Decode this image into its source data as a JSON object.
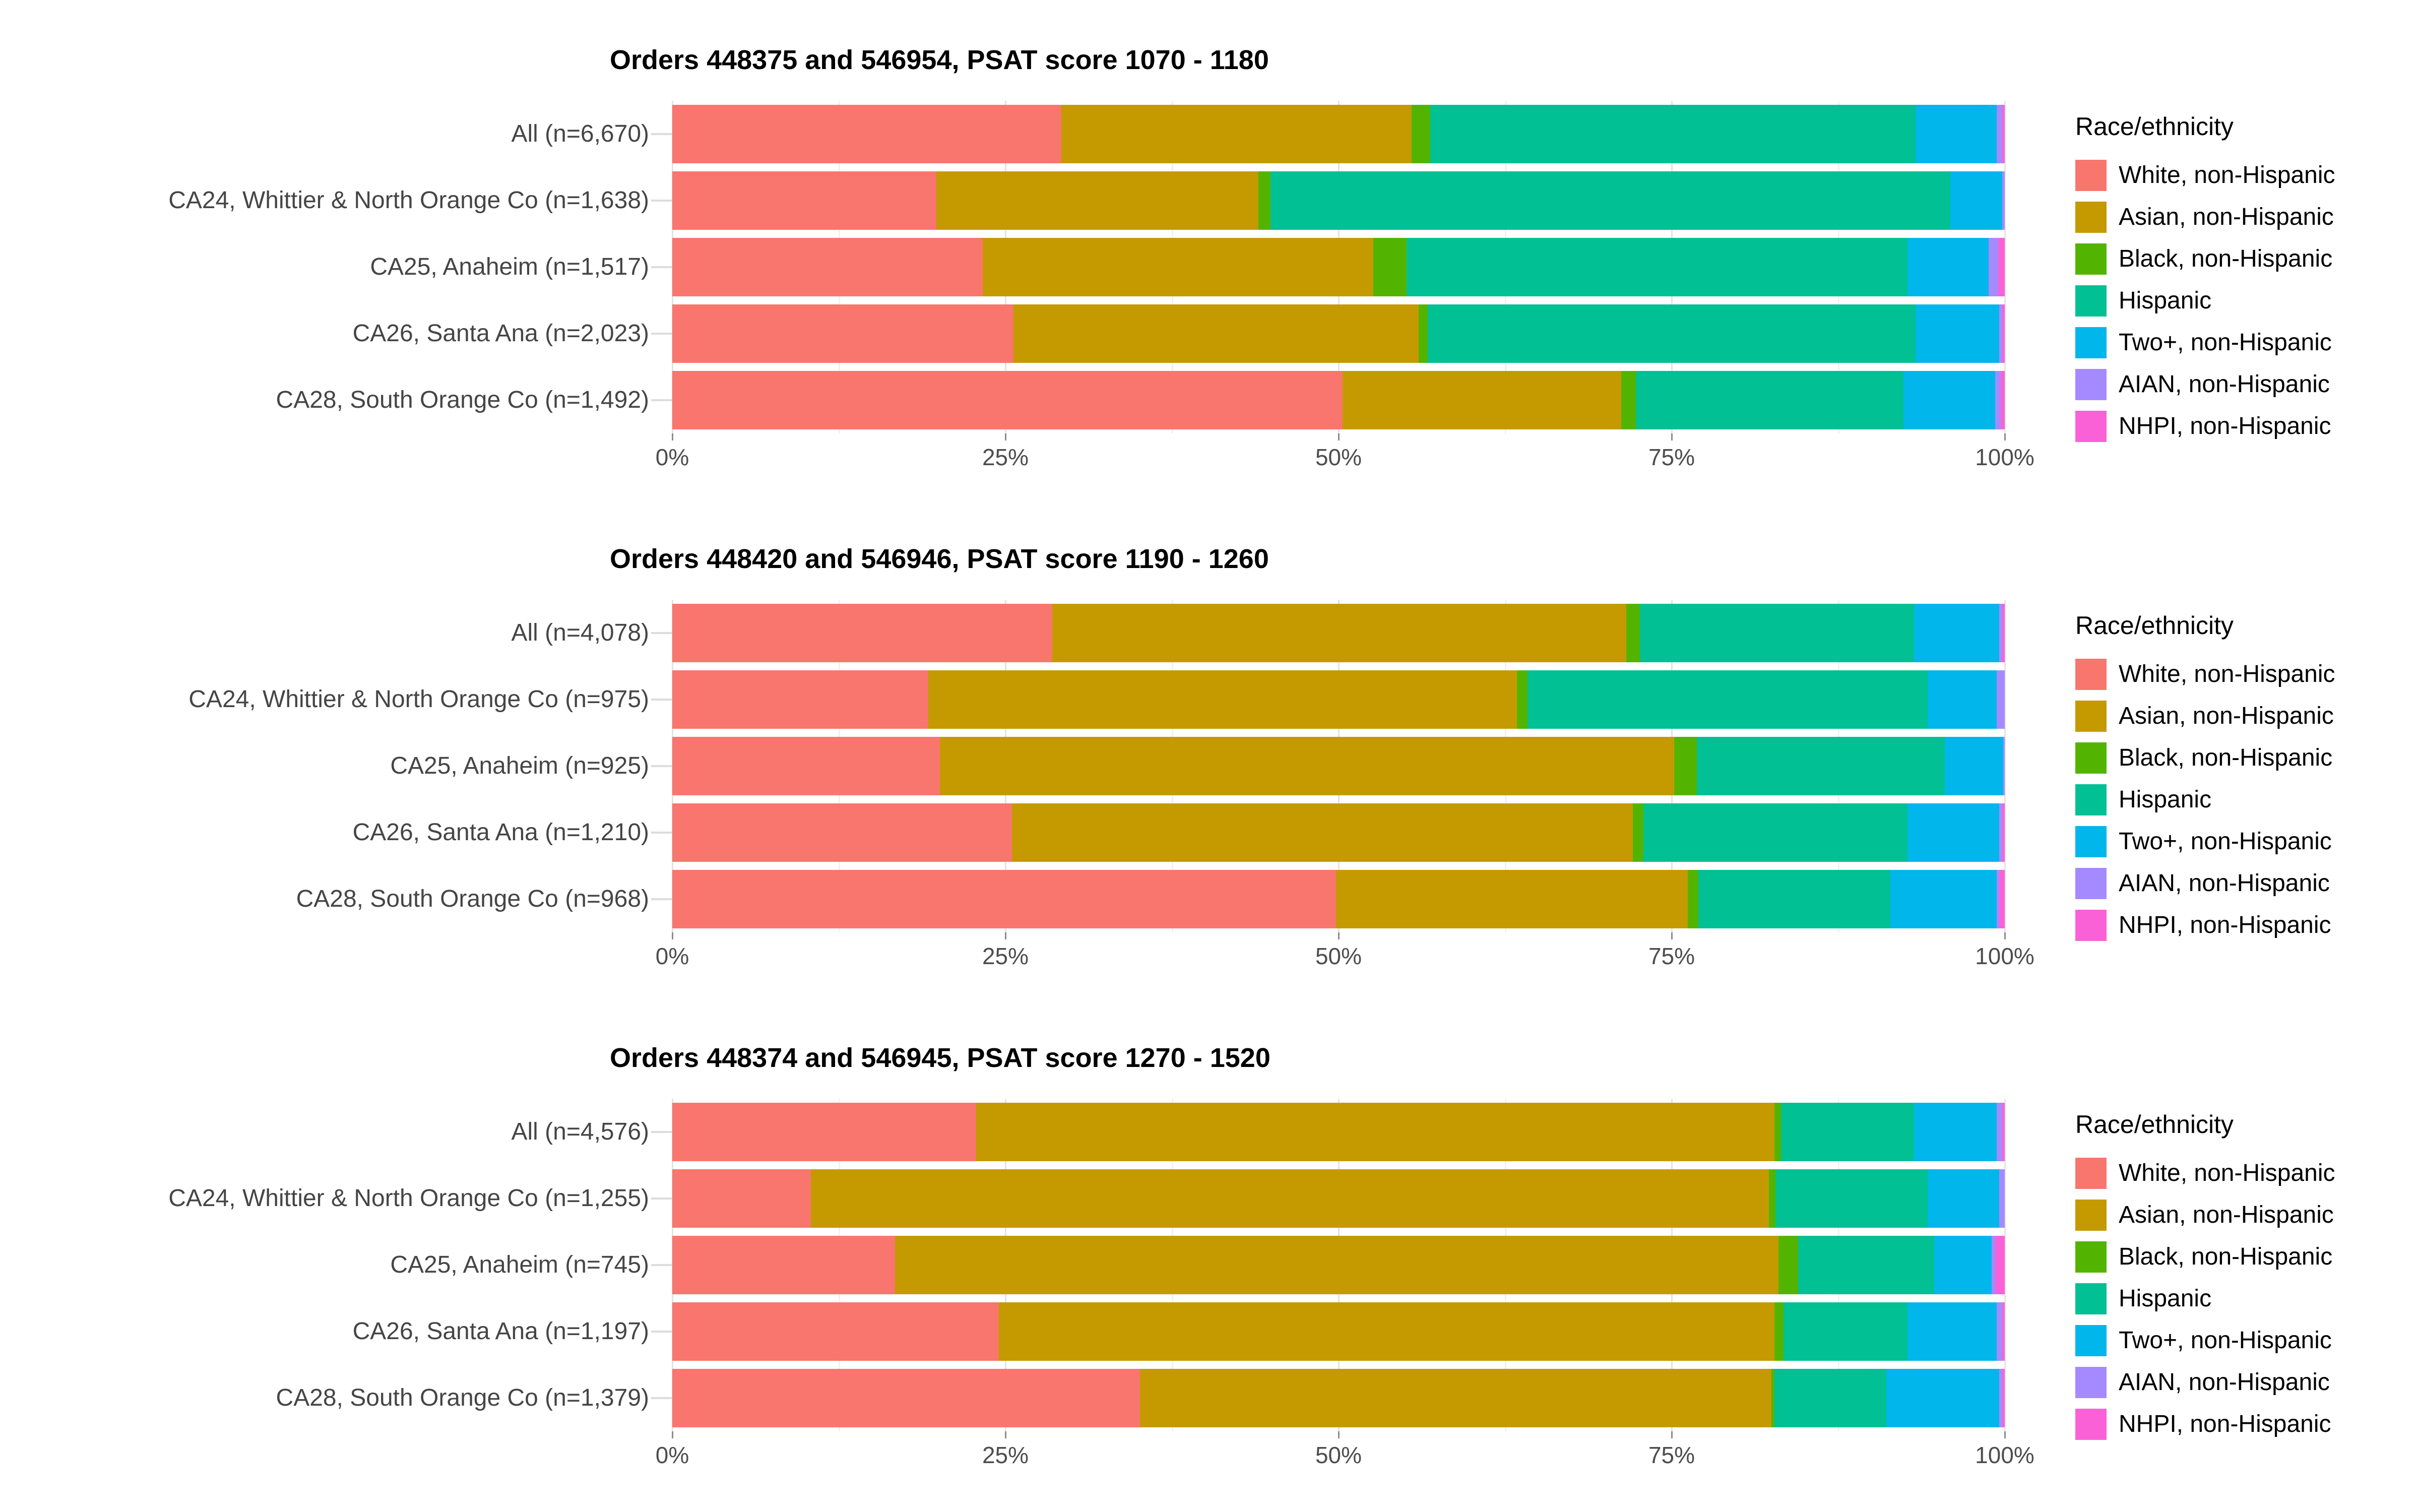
{
  "legend_title": "Race/ethnicity",
  "x_axis": {
    "tick_labels": [
      "0%",
      "25%",
      "50%",
      "75%",
      "100%"
    ],
    "tick_values": [
      0,
      25,
      50,
      75,
      100
    ]
  },
  "palette": {
    "white_nh": "#F8766D",
    "asian_nh": "#C49A00",
    "black_nh": "#53B400",
    "hispanic": "#00C094",
    "two_plus_nh": "#00B6EB",
    "aian_nh": "#A58AFF",
    "nhpi_nh": "#FB61D7"
  },
  "chart_data": [
    {
      "type": "bar",
      "stacked": true,
      "orientation": "horizontal",
      "title": "Orders 448375 and 546954, PSAT score 1070 - 1180",
      "xlabel": "",
      "ylabel": "",
      "xlim": [
        0,
        100
      ],
      "units": "percent",
      "grid": "major+minor vertical, light gray on white",
      "x_ticks": [
        "0%",
        "25%",
        "50%",
        "75%",
        "100%"
      ],
      "x_tick_values": [
        0,
        25,
        50,
        75,
        100
      ],
      "legend_title": "Race/ethnicity",
      "legend_position": "right",
      "categories": [
        "All (n=6,670)",
        "CA24, Whittier & North Orange Co (n=1,638)",
        "CA25, Anaheim (n=1,517)",
        "CA26, Santa Ana (n=2,023)",
        "CA28, South Orange Co (n=1,492)"
      ],
      "series": [
        {
          "name": "White, non-Hispanic",
          "color": "#F8766D",
          "values": [
            29.2,
            19.8,
            23.3,
            25.6,
            50.3
          ]
        },
        {
          "name": "Asian, non-Hispanic",
          "color": "#C49A00",
          "values": [
            26.3,
            24.2,
            29.3,
            30.4,
            20.9
          ]
        },
        {
          "name": "Black, non-Hispanic",
          "color": "#53B400",
          "values": [
            1.4,
            0.9,
            2.5,
            0.7,
            1.1
          ]
        },
        {
          "name": "Hispanic",
          "color": "#00C094",
          "values": [
            36.4,
            51.0,
            37.6,
            36.6,
            20.1
          ]
        },
        {
          "name": "Two+, non-Hispanic",
          "color": "#00B6EB",
          "values": [
            6.1,
            3.9,
            6.1,
            6.3,
            6.9
          ]
        },
        {
          "name": "AIAN, non-Hispanic",
          "color": "#A58AFF",
          "values": [
            0.4,
            0.2,
            0.7,
            0.2,
            0.4
          ]
        },
        {
          "name": "NHPI, non-Hispanic",
          "color": "#FB61D7",
          "values": [
            0.2,
            0.0,
            0.5,
            0.2,
            0.3
          ]
        }
      ]
    },
    {
      "type": "bar",
      "stacked": true,
      "orientation": "horizontal",
      "title": "Orders 448420 and 546946, PSAT score 1190 - 1260",
      "xlabel": "",
      "ylabel": "",
      "xlim": [
        0,
        100
      ],
      "units": "percent",
      "grid": "major+minor vertical, light gray on white",
      "x_ticks": [
        "0%",
        "25%",
        "50%",
        "75%",
        "100%"
      ],
      "x_tick_values": [
        0,
        25,
        50,
        75,
        100
      ],
      "legend_title": "Race/ethnicity",
      "legend_position": "right",
      "categories": [
        "All (n=4,078)",
        "CA24, Whittier & North Orange Co (n=975)",
        "CA25, Anaheim (n=925)",
        "CA26, Santa Ana (n=1,210)",
        "CA28, South Orange Co (n=968)"
      ],
      "series": [
        {
          "name": "White, non-Hispanic",
          "color": "#F8766D",
          "values": [
            28.5,
            19.2,
            20.1,
            25.5,
            49.8
          ]
        },
        {
          "name": "Asian, non-Hispanic",
          "color": "#C49A00",
          "values": [
            43.1,
            44.2,
            55.1,
            46.6,
            26.4
          ]
        },
        {
          "name": "Black, non-Hispanic",
          "color": "#53B400",
          "values": [
            1.0,
            0.8,
            1.7,
            0.8,
            0.8
          ]
        },
        {
          "name": "Hispanic",
          "color": "#00C094",
          "values": [
            20.6,
            30.0,
            18.6,
            19.8,
            14.4
          ]
        },
        {
          "name": "Two+, non-Hispanic",
          "color": "#00B6EB",
          "values": [
            6.4,
            5.2,
            4.4,
            6.9,
            8.0
          ]
        },
        {
          "name": "AIAN, non-Hispanic",
          "color": "#A58AFF",
          "values": [
            0.2,
            0.6,
            0.1,
            0.2,
            0.2
          ]
        },
        {
          "name": "NHPI, non-Hispanic",
          "color": "#FB61D7",
          "values": [
            0.2,
            0.0,
            0.0,
            0.2,
            0.4
          ]
        }
      ]
    },
    {
      "type": "bar",
      "stacked": true,
      "orientation": "horizontal",
      "title": "Orders 448374 and 546945, PSAT score 1270 - 1520",
      "xlabel": "",
      "ylabel": "",
      "xlim": [
        0,
        100
      ],
      "units": "percent",
      "grid": "major+minor vertical, light gray on white",
      "x_ticks": [
        "0%",
        "25%",
        "50%",
        "75%",
        "100%"
      ],
      "x_tick_values": [
        0,
        25,
        50,
        75,
        100
      ],
      "legend_title": "Race/ethnicity",
      "legend_position": "right",
      "categories": [
        "All (n=4,576)",
        "CA24, Whittier & North Orange Co (n=1,255)",
        "CA25, Anaheim (n=745)",
        "CA26, Santa Ana (n=1,197)",
        "CA28, South Orange Co (n=1,379)"
      ],
      "series": [
        {
          "name": "White, non-Hispanic",
          "color": "#F8766D",
          "values": [
            22.8,
            10.4,
            16.7,
            24.5,
            35.1
          ]
        },
        {
          "name": "Asian, non-Hispanic",
          "color": "#C49A00",
          "values": [
            59.9,
            71.9,
            66.3,
            58.2,
            47.4
          ]
        },
        {
          "name": "Black, non-Hispanic",
          "color": "#53B400",
          "values": [
            0.5,
            0.5,
            1.5,
            0.7,
            0.2
          ]
        },
        {
          "name": "Hispanic",
          "color": "#00C094",
          "values": [
            10.0,
            11.4,
            10.2,
            9.3,
            8.4
          ]
        },
        {
          "name": "Two+, non-Hispanic",
          "color": "#00B6EB",
          "values": [
            6.2,
            5.4,
            4.3,
            6.7,
            8.5
          ]
        },
        {
          "name": "AIAN, non-Hispanic",
          "color": "#A58AFF",
          "values": [
            0.4,
            0.4,
            0.3,
            0.4,
            0.2
          ]
        },
        {
          "name": "NHPI, non-Hispanic",
          "color": "#FB61D7",
          "values": [
            0.2,
            0.0,
            0.7,
            0.2,
            0.2
          ]
        }
      ]
    }
  ]
}
